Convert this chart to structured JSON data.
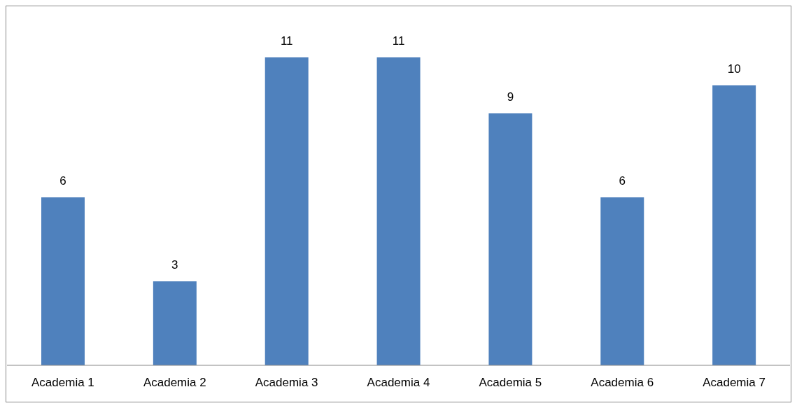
{
  "chart_data": {
    "type": "bar",
    "categories": [
      "Academia 1",
      "Academia 2",
      "Academia 3",
      "Academia 4",
      "Academia 5",
      "Academia 6",
      "Academia 7"
    ],
    "values": [
      6,
      3,
      11,
      11,
      9,
      6,
      10
    ],
    "color": "#4f81bd",
    "data_labels": true
  }
}
